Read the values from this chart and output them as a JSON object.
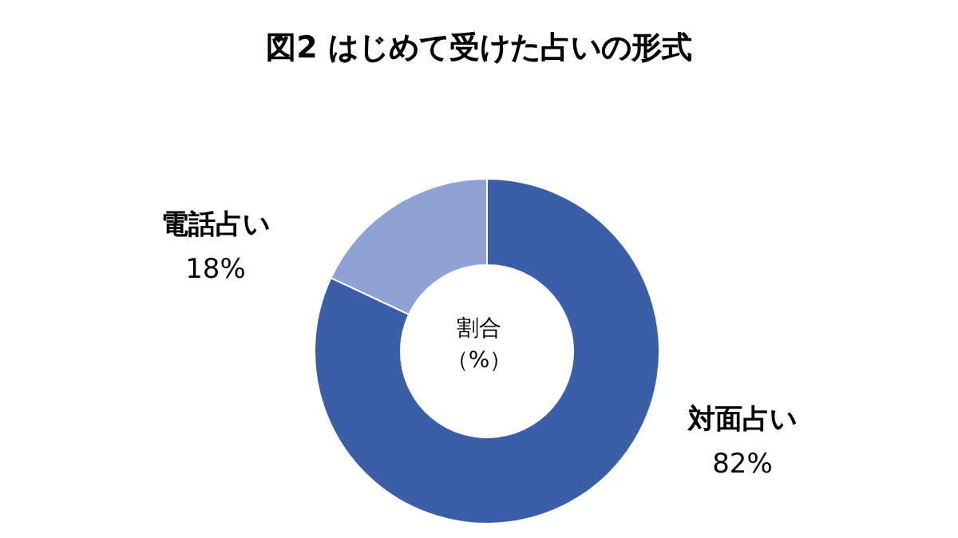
{
  "chart_data": {
    "type": "donut",
    "title": "図2 はじめて受けた占いの形式",
    "categories": [
      "対面占い",
      "電話占い"
    ],
    "values": [
      82,
      18
    ],
    "colors": [
      "#3b5ea8",
      "#8ea2d5"
    ],
    "value_labels": [
      "82%",
      "18%"
    ],
    "annotations": [
      "割合",
      "（%）"
    ]
  }
}
